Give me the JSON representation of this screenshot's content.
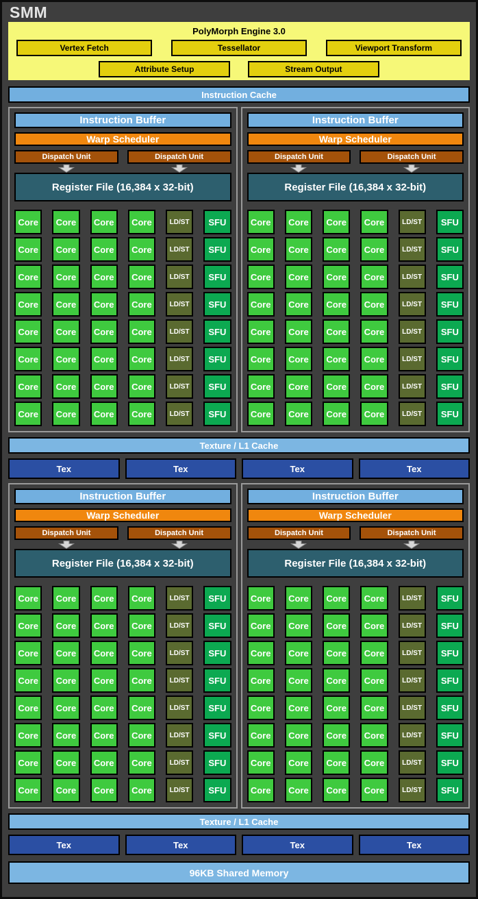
{
  "page": {
    "title": "SMM"
  },
  "colors": {
    "background": "#3E3E3E",
    "partition_border": "#9A9A9A",
    "polymorph_bg": "#F6F878",
    "polymorph_box_yellow": "#E3CF0E",
    "instruction_blue": "#72AFDF",
    "texture_blue": "#7CB6E2",
    "warp_scheduler_orange": "#F0870E",
    "dispatch_brown": "#A4520A",
    "register_file_teal": "#2D5F6E",
    "core_green": "#3FCA3F",
    "ldst_olive": "#5A6A30",
    "sfu_green": "#0CA951",
    "tex_dark_blue": "#2B4FA3"
  },
  "polymorph": {
    "title": "PolyMorph Engine 3.0",
    "row1": [
      "Vertex Fetch",
      "Tessellator",
      "Viewport Transform"
    ],
    "row2": [
      "Attribute Setup",
      "Stream Output"
    ]
  },
  "labels": {
    "instruction_cache": "Instruction Cache",
    "instruction_buffer": "Instruction Buffer",
    "warp_scheduler": "Warp Scheduler",
    "dispatch_unit": "Dispatch Unit",
    "register_file": "Register File (16,384 x 32-bit)",
    "core": "Core",
    "ldst": "LD/ST",
    "sfu": "SFU",
    "texture_l1_cache": "Texture / L1 Cache",
    "tex": "Tex",
    "shared_memory": "96KB Shared Memory"
  },
  "structure": {
    "quadrants": 4,
    "core_rows_per_quadrant": 8,
    "row_pattern": [
      "core",
      "core",
      "core",
      "core",
      "ldst",
      "sfu"
    ],
    "dispatch_units_per_quadrant": 2,
    "tex_units_per_row": 4
  }
}
